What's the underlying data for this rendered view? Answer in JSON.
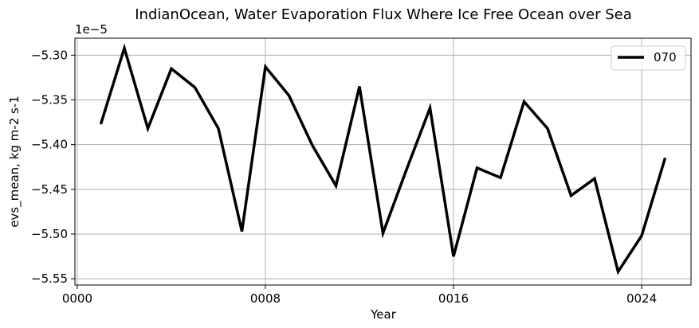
{
  "chart_data": {
    "type": "line",
    "title": "IndianOcean, Water Evaporation Flux Where Ice Free Ocean over Sea",
    "xlabel": "Year",
    "ylabel": "evs_mean, kg m-2 s-1",
    "offset_label": "1e−5",
    "x": [
      1,
      2,
      3,
      4,
      5,
      6,
      7,
      8,
      9,
      10,
      11,
      12,
      13,
      14,
      15,
      16,
      17,
      18,
      19,
      20,
      21,
      22,
      23,
      24,
      25
    ],
    "series": [
      {
        "name": "070",
        "color": "#000000",
        "values": [
          -5.377,
          -5.292,
          -5.382,
          -5.315,
          -5.336,
          -5.382,
          -5.497,
          -5.313,
          -5.345,
          -5.401,
          -5.446,
          -5.335,
          -5.499,
          -5.428,
          -5.359,
          -5.525,
          -5.426,
          -5.437,
          -5.352,
          -5.382,
          -5.457,
          -5.438,
          -5.542,
          -5.502,
          -5.415
        ]
      }
    ],
    "xlim": [
      -0.1,
      26.1
    ],
    "ylim": [
      -5.557,
      -5.281
    ],
    "xticks": [
      0,
      8,
      16,
      24
    ],
    "xtick_labels": [
      "0000",
      "0008",
      "0016",
      "0024"
    ],
    "yticks": [
      -5.55,
      -5.5,
      -5.45,
      -5.4,
      -5.35,
      -5.3
    ],
    "ytick_labels": [
      "−5.55",
      "−5.50",
      "−5.45",
      "−5.40",
      "−5.35",
      "−5.30"
    ],
    "grid": true,
    "legend_position": "top-right"
  }
}
